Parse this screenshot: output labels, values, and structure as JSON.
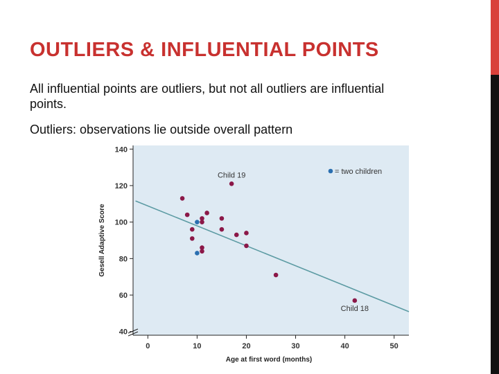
{
  "slide": {
    "title": "OUTLIERS & INFLUENTIAL POINTS",
    "paragraph1": "All influential points are outliers, but not all outliers are influential points.",
    "paragraph2": "Outliers:  observations lie outside overall pattern"
  },
  "colors": {
    "title": "#c8312f",
    "accent_red": "#d9413b",
    "plot_background": "#deeaf3",
    "point": "#8b1848",
    "double_point": "#2a6fb0",
    "regression_line": "#5c9ba3"
  },
  "chart_data": {
    "type": "scatter",
    "title": "",
    "xlabel": "Age at first word (months)",
    "ylabel": "Gesell Adaptive Score",
    "xlim": [
      -3,
      53
    ],
    "ylim": [
      38,
      142
    ],
    "xticks": [
      0,
      10,
      20,
      30,
      40,
      50
    ],
    "yticks": [
      40,
      60,
      80,
      100,
      120,
      140
    ],
    "grid": false,
    "axis_break": true,
    "legend": {
      "label": "= two children",
      "placement": "top-right"
    },
    "points": [
      {
        "x": 7,
        "y": 113,
        "double": false
      },
      {
        "x": 8,
        "y": 104,
        "double": false
      },
      {
        "x": 9,
        "y": 96,
        "double": false
      },
      {
        "x": 9,
        "y": 91,
        "double": false
      },
      {
        "x": 10,
        "y": 100,
        "double": true
      },
      {
        "x": 10,
        "y": 83,
        "double": true
      },
      {
        "x": 11,
        "y": 102,
        "double": false
      },
      {
        "x": 11,
        "y": 100,
        "double": false
      },
      {
        "x": 11,
        "y": 86,
        "double": false
      },
      {
        "x": 11,
        "y": 84,
        "double": false
      },
      {
        "x": 12,
        "y": 105,
        "double": false
      },
      {
        "x": 15,
        "y": 102,
        "double": false
      },
      {
        "x": 15,
        "y": 96,
        "double": false
      },
      {
        "x": 17,
        "y": 121,
        "double": false
      },
      {
        "x": 18,
        "y": 93,
        "double": false
      },
      {
        "x": 20,
        "y": 94,
        "double": false
      },
      {
        "x": 20,
        "y": 87,
        "double": false
      },
      {
        "x": 26,
        "y": 71,
        "double": false
      },
      {
        "x": 42,
        "y": 57,
        "double": false
      }
    ],
    "regression_line": {
      "x_start": -2.5,
      "y_start": 111.6,
      "x_end": 53,
      "y_end": 50.9
    },
    "annotations": [
      {
        "text": "Child 19",
        "x": 17,
        "y": 121
      },
      {
        "text": "Child 18",
        "x": 42,
        "y": 57
      }
    ]
  }
}
